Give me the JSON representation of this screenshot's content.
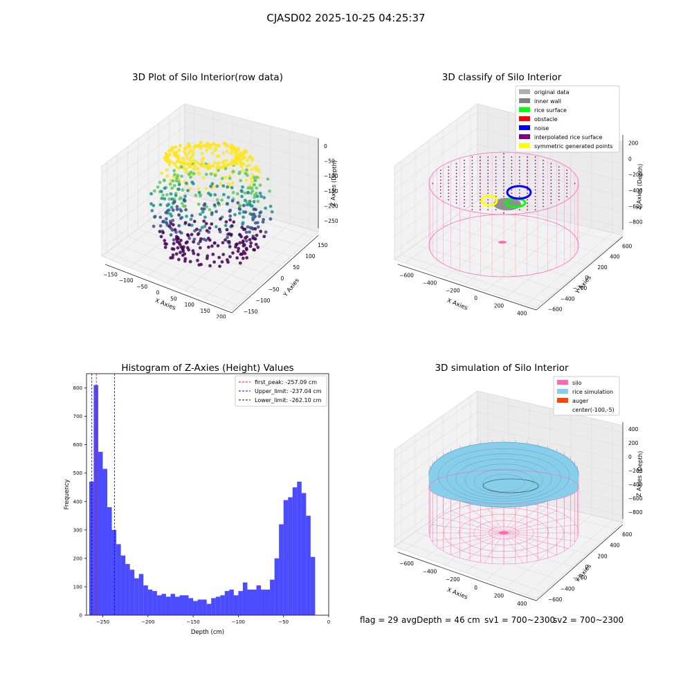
{
  "suptitle": "CJASD02 2025-10-25 04:25:37",
  "chart_data": [
    {
      "type": "scatter3d",
      "title": "3D Plot of Silo Interior(row data)",
      "xlabel": "X Axies",
      "ylabel": "Y Axies",
      "zlabel": "Z Axies (Depth)",
      "xticks": [
        "−150",
        "−100",
        "−50",
        "0",
        "50",
        "100",
        "150",
        "200"
      ],
      "yticks": [
        "−150",
        "−100",
        "−50",
        "0",
        "50",
        "100",
        "150"
      ],
      "zticks": [
        "0",
        "−50",
        "−100",
        "−150",
        "−200",
        "−250"
      ],
      "colormap": [
        "#440154",
        "#3b528b",
        "#21918c",
        "#5ec962",
        "#fde725"
      ]
    },
    {
      "type": "scatter3d",
      "title": "3D classify of Silo Interior",
      "xlabel": "X Axies",
      "ylabel": "Y Axies",
      "zlabel": "Z Axies (Depth)",
      "xticks": [
        "−600",
        "−400",
        "−200",
        "0",
        "200",
        "400"
      ],
      "yticks": [
        "−600",
        "−400",
        "−200",
        "0",
        "200",
        "400",
        "600"
      ],
      "zticks": [
        "200",
        "0",
        "−200",
        "−400",
        "−600",
        "−800"
      ],
      "legend": [
        {
          "label": "original data",
          "color": "#b0b0b0"
        },
        {
          "label": "inner wall",
          "color": "#808080"
        },
        {
          "label": "rice surface",
          "color": "#00ff00"
        },
        {
          "label": "obstacle",
          "color": "#ff0000"
        },
        {
          "label": "noise",
          "color": "#0000ff"
        },
        {
          "label": "interpolated rice surface",
          "color": "#800080"
        },
        {
          "label": "symmetric generated points",
          "color": "#ffff00"
        }
      ]
    },
    {
      "type": "bar",
      "title": "Histogram of Z-Axies (Height) Values",
      "xlabel": "Depth (cm)",
      "ylabel": "Frequency",
      "xlim": [
        -268,
        0
      ],
      "ylim": [
        0,
        850
      ],
      "xticks": [
        -250,
        -200,
        -150,
        -100,
        -50,
        0
      ],
      "yticks": [
        0,
        100,
        200,
        300,
        400,
        500,
        600,
        700,
        800
      ],
      "bin_start": -265,
      "bin_width": 5,
      "values": [
        470,
        810,
        575,
        515,
        380,
        300,
        250,
        210,
        180,
        160,
        130,
        145,
        105,
        90,
        85,
        70,
        75,
        65,
        75,
        65,
        70,
        70,
        60,
        50,
        55,
        55,
        40,
        60,
        65,
        70,
        85,
        90,
        70,
        85,
        115,
        90,
        90,
        105,
        90,
        90,
        125,
        200,
        320,
        405,
        415,
        450,
        470,
        430,
        350,
        205
      ],
      "color": "#0000ff",
      "vlines": [
        {
          "x": -257.09,
          "label": "first_peak: -257.09 cm",
          "color": "#ff0000"
        },
        {
          "x": -237.04,
          "label": "Upper_limit: -237.04 cm",
          "color": "#0000ff"
        },
        {
          "x": -262.1,
          "label": "Lower_limit: -262.10 cm",
          "color": "#00008b"
        }
      ]
    },
    {
      "type": "surface3d",
      "title": "3D simulation of Silo Interior",
      "xlabel": "X Axies",
      "ylabel": "Y Axies",
      "zlabel": "Z Axies (Depth)",
      "xticks": [
        "−600",
        "−400",
        "−200",
        "0",
        "200",
        "400"
      ],
      "yticks": [
        "−600",
        "−400",
        "−200",
        "0",
        "200",
        "400",
        "600"
      ],
      "zticks": [
        "400",
        "200",
        "0",
        "−200",
        "−400",
        "−600",
        "−800"
      ],
      "legend": [
        {
          "label": "silo",
          "color": "#ff69b4"
        },
        {
          "label": "rice simulation",
          "color": "#87ceeb"
        },
        {
          "label": "auger",
          "color": "#ff4500"
        },
        {
          "label": "center(-100,-5)",
          "color": ""
        }
      ]
    }
  ],
  "status": {
    "flag": "flag = 29",
    "avg": "avgDepth = 46 cm",
    "sv1": "sv1 = 700~2300",
    "sv2": "sv2 = 700~2300"
  }
}
